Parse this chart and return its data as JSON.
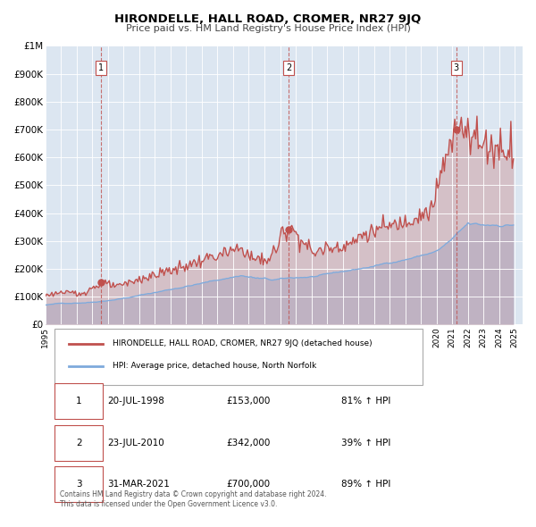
{
  "title": "HIRONDELLE, HALL ROAD, CROMER, NR27 9JQ",
  "subtitle": "Price paid vs. HM Land Registry's House Price Index (HPI)",
  "bg_color": "#dce6f1",
  "plot_bg_color": "#dce6f1",
  "fig_bg_color": "#ffffff",
  "hpi_color": "#7faadc",
  "price_color": "#c0504d",
  "sale_marker_color": "#c0504d",
  "dashed_line_color": "#c0504d",
  "ylim": [
    0,
    1000000
  ],
  "yticks": [
    0,
    100000,
    200000,
    300000,
    400000,
    500000,
    600000,
    700000,
    800000,
    900000,
    1000000
  ],
  "ytick_labels": [
    "£0",
    "£100K",
    "£200K",
    "£300K",
    "£400K",
    "£500K",
    "£600K",
    "£700K",
    "£800K",
    "£900K",
    "£1M"
  ],
  "xlim_start": 1995.0,
  "xlim_end": 2025.5,
  "xticks": [
    1995,
    1996,
    1997,
    1998,
    1999,
    2000,
    2001,
    2002,
    2003,
    2004,
    2005,
    2006,
    2007,
    2008,
    2009,
    2010,
    2011,
    2012,
    2013,
    2014,
    2015,
    2016,
    2017,
    2018,
    2019,
    2020,
    2021,
    2022,
    2023,
    2024,
    2025
  ],
  "sales": [
    {
      "num": 1,
      "date": "20-JUL-1998",
      "year": 1998.55,
      "price": 153000,
      "pct": "81%",
      "dir": "↑"
    },
    {
      "num": 2,
      "date": "23-JUL-2010",
      "year": 2010.55,
      "price": 342000,
      "pct": "39%",
      "dir": "↑"
    },
    {
      "num": 3,
      "date": "31-MAR-2021",
      "year": 2021.25,
      "price": 700000,
      "pct": "89%",
      "dir": "↑"
    }
  ],
  "legend_label_price": "HIRONDELLE, HALL ROAD, CROMER, NR27 9JQ (detached house)",
  "legend_label_hpi": "HPI: Average price, detached house, North Norfolk",
  "footnote": "Contains HM Land Registry data © Crown copyright and database right 2024.\nThis data is licensed under the Open Government Licence v3.0.",
  "table_rows": [
    [
      "1",
      "20-JUL-1998",
      "£153,000",
      "81% ↑ HPI"
    ],
    [
      "2",
      "23-JUL-2010",
      "£342,000",
      "39% ↑ HPI"
    ],
    [
      "3",
      "31-MAR-2021",
      "£700,000",
      "89% ↑ HPI"
    ]
  ]
}
